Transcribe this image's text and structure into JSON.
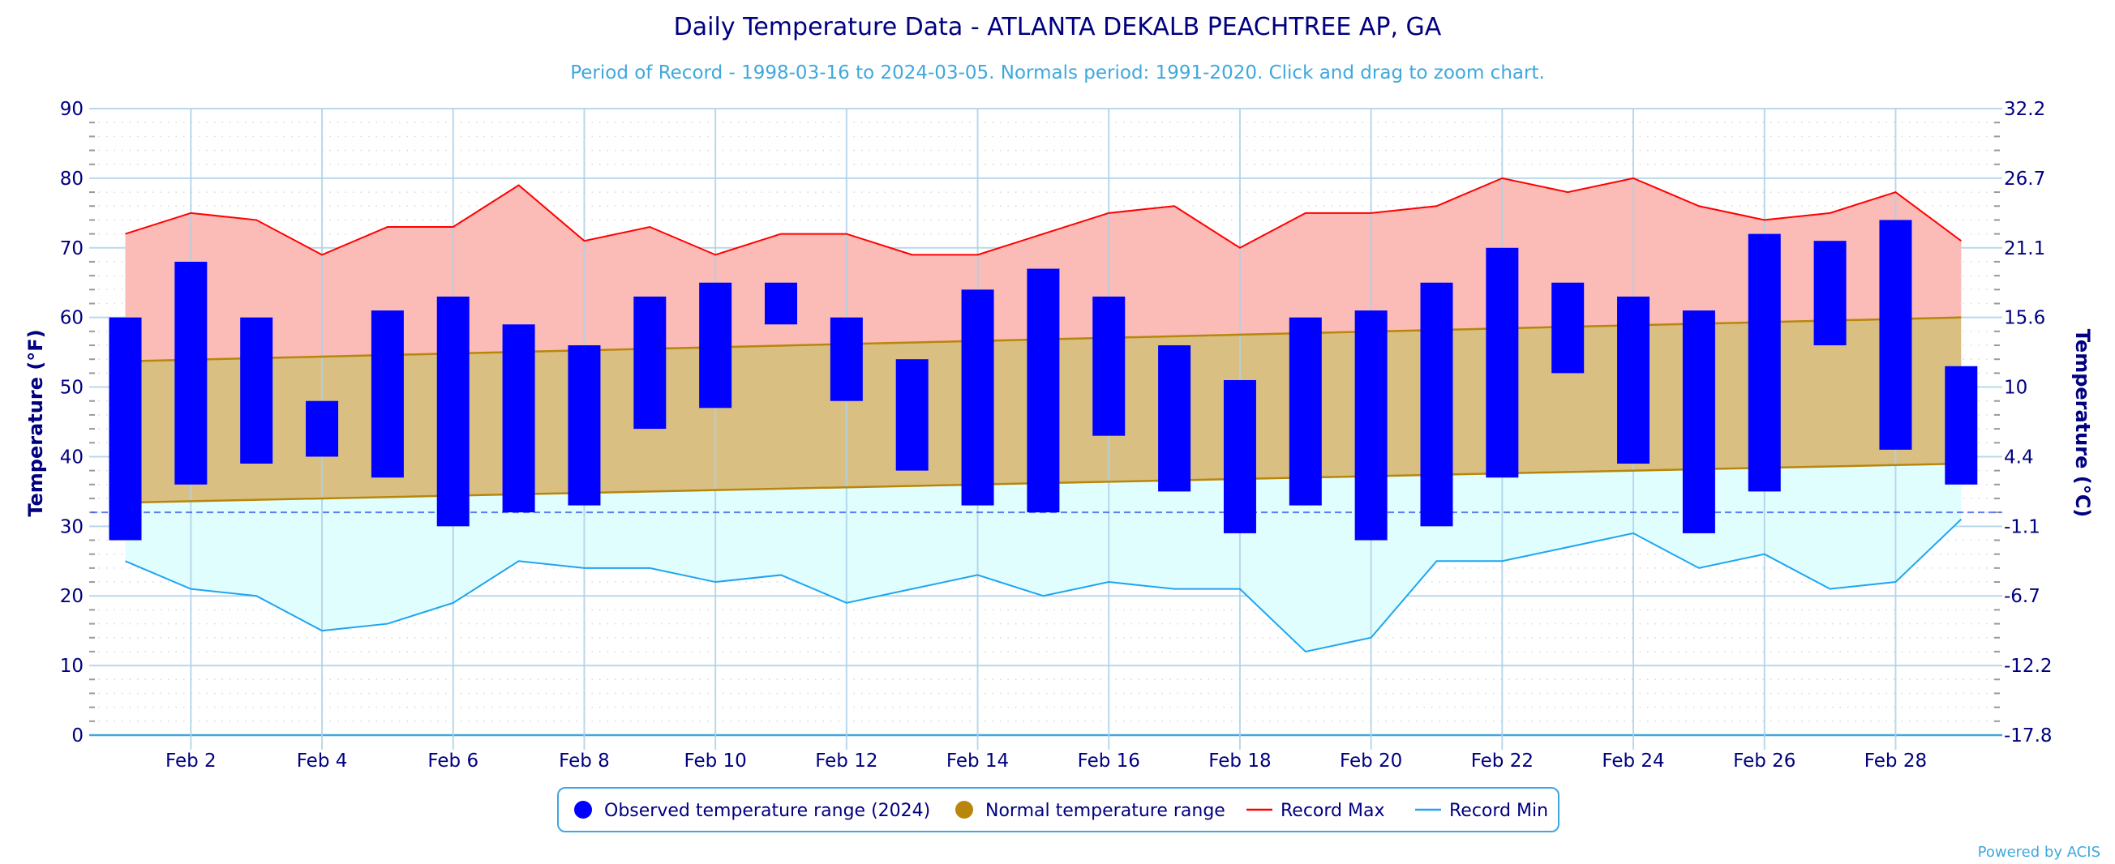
{
  "chart_data": {
    "type": "bar",
    "title": "Daily Temperature Data - ATLANTA DEKALB PEACHTREE AP, GA",
    "subtitle": "Period of Record - 1998-03-16 to 2024-03-05. Normals period: 1991-2020. Click and drag to zoom chart.",
    "ylabel": "Temperature (°F)",
    "ylabel_right": "Temperature (°C)",
    "xlabel": "",
    "ylim": [
      0,
      90
    ],
    "yticks": [
      0,
      10,
      20,
      30,
      40,
      50,
      60,
      70,
      80,
      90
    ],
    "yticks_right": [
      "-17.8",
      "-12.2",
      "-6.7",
      "-1.1",
      "4.4",
      "10",
      "15.6",
      "21.1",
      "26.7",
      "32.2"
    ],
    "freezing_line": 32,
    "grid": true,
    "legend_position": "bottom-center",
    "days": [
      1,
      2,
      3,
      4,
      5,
      6,
      7,
      8,
      9,
      10,
      11,
      12,
      13,
      14,
      15,
      16,
      17,
      18,
      19,
      20,
      21,
      22,
      23,
      24,
      25,
      26,
      27,
      28,
      29
    ],
    "xtick_labels": [
      "Feb 2",
      "Feb 4",
      "Feb 6",
      "Feb 8",
      "Feb 10",
      "Feb 12",
      "Feb 14",
      "Feb 16",
      "Feb 18",
      "Feb 20",
      "Feb 22",
      "Feb 24",
      "Feb 26",
      "Feb 28"
    ],
    "xtick_days": [
      2,
      4,
      6,
      8,
      10,
      12,
      14,
      16,
      18,
      20,
      22,
      24,
      26,
      28
    ],
    "series": [
      {
        "name": "Observed temperature range (2024)",
        "type": "range-bar",
        "color": "#0000ff",
        "high": [
          60,
          68,
          60,
          48,
          61,
          63,
          59,
          56,
          63,
          65,
          65,
          60,
          54,
          64,
          67,
          63,
          56,
          51,
          60,
          61,
          65,
          70,
          65,
          63,
          61,
          72,
          71,
          74,
          53
        ],
        "low": [
          28,
          36,
          39,
          40,
          37,
          30,
          32,
          33,
          44,
          47,
          59,
          48,
          38,
          33,
          32,
          43,
          35,
          29,
          33,
          28,
          30,
          37,
          52,
          39,
          29,
          35,
          56,
          41,
          36
        ]
      },
      {
        "name": "Normal temperature range",
        "type": "range-area",
        "color": "#b8860b",
        "high_start": 53.7,
        "high_end": 60,
        "low_start": 33.4,
        "low_end": 39
      },
      {
        "name": "Record Max",
        "type": "line",
        "color": "#ff0000",
        "values": [
          72,
          75,
          74,
          69,
          73,
          73,
          79,
          71,
          73,
          69,
          72,
          72,
          69,
          69,
          72,
          75,
          76,
          70,
          75,
          75,
          76,
          80,
          78,
          80,
          76,
          74,
          75,
          78,
          71
        ]
      },
      {
        "name": "Record Min",
        "type": "line",
        "color": "#1ea5f0",
        "values": [
          25,
          21,
          20,
          15,
          16,
          19,
          25,
          24,
          24,
          22,
          23,
          19,
          21,
          23,
          20,
          22,
          21,
          21,
          12,
          14,
          25,
          25,
          27,
          29,
          24,
          26,
          21,
          22,
          31
        ]
      }
    ]
  },
  "legend": {
    "items": [
      {
        "label": "Observed temperature range (2024)",
        "symbol": "circle",
        "color": "#0000ff"
      },
      {
        "label": "Normal temperature range",
        "symbol": "circle",
        "color": "#b8860b"
      },
      {
        "label": "Record Max",
        "symbol": "line",
        "color": "#ff0000"
      },
      {
        "label": "Record Min",
        "symbol": "line",
        "color": "#1ea5f0"
      }
    ]
  },
  "credit": "Powered by ACIS",
  "colors": {
    "record_fill": "#fbbbb6",
    "normal_fill": "#d9c082",
    "min_fill": "#e0fefe",
    "grid": "#add1e8",
    "text": "#000080",
    "accent": "#3ea8dd"
  }
}
